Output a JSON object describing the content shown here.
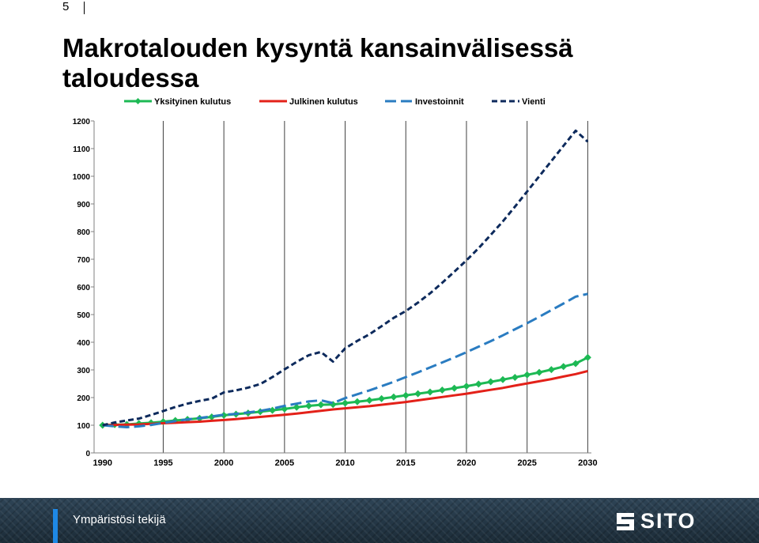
{
  "header": {
    "page_number": "5",
    "title": "Makrotalouden kysyntä kansainvälisessä taloudessa"
  },
  "chart_data": {
    "type": "line",
    "x": [
      1990,
      1991,
      1992,
      1993,
      1994,
      1995,
      1996,
      1997,
      1998,
      1999,
      2000,
      2001,
      2002,
      2003,
      2004,
      2005,
      2006,
      2007,
      2008,
      2009,
      2010,
      2011,
      2012,
      2013,
      2014,
      2015,
      2016,
      2017,
      2018,
      2019,
      2020,
      2021,
      2022,
      2023,
      2024,
      2025,
      2026,
      2027,
      2028,
      2029,
      2030
    ],
    "x_ticks": [
      1990,
      1995,
      2000,
      2005,
      2010,
      2015,
      2020,
      2025,
      2030
    ],
    "y_ticks": [
      0,
      100,
      200,
      300,
      400,
      500,
      600,
      700,
      800,
      900,
      1000,
      1100,
      1200
    ],
    "ylim": [
      0,
      1200
    ],
    "xlim": [
      1989.3,
      2030.3
    ],
    "grid": "vertical",
    "legend_position": "top",
    "series": [
      {
        "name": "Yksityinen kulutus",
        "color": "#1db954",
        "style": "solid-diamond",
        "values": [
          100,
          102,
          103,
          106,
          109,
          113,
          117,
          121,
          125,
          130,
          136,
          140,
          144,
          149,
          154,
          159,
          165,
          170,
          174,
          175,
          180,
          185,
          190,
          196,
          202,
          208,
          214,
          220,
          227,
          234,
          241,
          249,
          257,
          265,
          273,
          282,
          291,
          301,
          312,
          323,
          345
        ]
      },
      {
        "name": "Julkinen kulutus",
        "color": "#e32119",
        "style": "solid",
        "values": [
          100,
          101,
          102,
          103,
          105,
          107,
          109,
          111,
          113,
          116,
          119,
          122,
          126,
          130,
          134,
          138,
          142,
          147,
          152,
          157,
          161,
          165,
          169,
          174,
          179,
          184,
          190,
          196,
          202,
          208,
          214,
          221,
          228,
          235,
          243,
          251,
          259,
          267,
          276,
          285,
          296
        ]
      },
      {
        "name": "Investoinnit",
        "color": "#2a7cc1",
        "style": "dashed",
        "values": [
          100,
          96,
          93,
          96,
          101,
          108,
          115,
          121,
          126,
          132,
          138,
          141,
          146,
          152,
          160,
          170,
          178,
          186,
          190,
          180,
          198,
          212,
          226,
          241,
          257,
          274,
          291,
          309,
          327,
          345,
          364,
          384,
          404,
          425,
          447,
          469,
          492,
          516,
          540,
          565,
          575
        ]
      },
      {
        "name": "Vienti",
        "color": "#0d2a5c",
        "style": "dashed",
        "values": [
          100,
          110,
          117,
          124,
          137,
          151,
          166,
          178,
          188,
          196,
          219,
          226,
          236,
          249,
          274,
          302,
          329,
          353,
          365,
          330,
          378,
          405,
          429,
          458,
          488,
          513,
          543,
          577,
          615,
          655,
          696,
          740,
          788,
          837,
          890,
          945,
          1000,
          1055,
          1110,
          1165,
          1125
        ]
      }
    ]
  },
  "footer": {
    "tagline": "Ympäristösi tekijä",
    "logo_text": "SITO"
  }
}
